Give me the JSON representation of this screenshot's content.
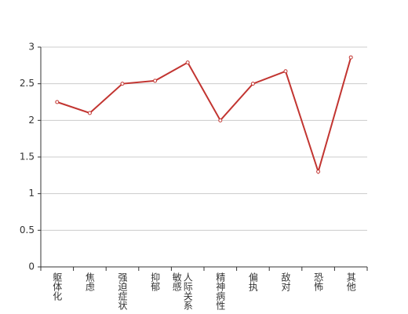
{
  "chart_data": {
    "type": "line",
    "categories": [
      "躯体化",
      "焦虑",
      "强迫症状",
      "抑郁",
      "人际关系敏感",
      "精神病性",
      "偏执",
      "敌对",
      "恐怖",
      "其他"
    ],
    "series": [
      {
        "color": "#c23531",
        "values": [
          2.25,
          2.1,
          2.5,
          2.54,
          2.79,
          2.0,
          2.5,
          2.67,
          1.3,
          2.86
        ]
      }
    ],
    "ylim": [
      0,
      3
    ],
    "yticks": [
      0,
      0.5,
      1,
      1.5,
      2,
      2.5,
      3
    ],
    "grid": true
  }
}
